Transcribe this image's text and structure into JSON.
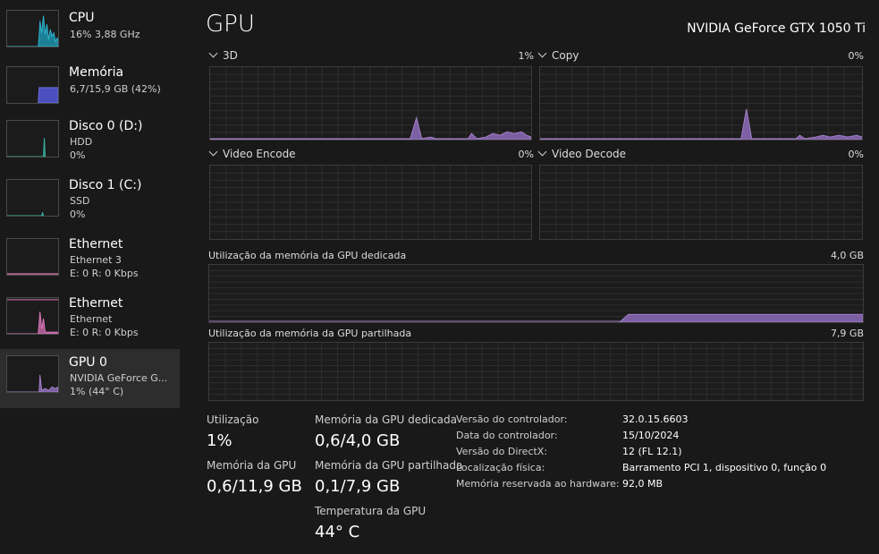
{
  "sidebar": {
    "items": [
      {
        "title": "CPU",
        "sub1": "16% 3,88 GHz",
        "sub2": "",
        "color": "#2fb4d1"
      },
      {
        "title": "Memória",
        "sub1": "6,7/15,9 GB (42%)",
        "sub2": "",
        "color": "#6d6fd8"
      },
      {
        "title": "Disco 0 (D:)",
        "sub1": "HDD",
        "sub2": "0%",
        "color": "#3db3a2"
      },
      {
        "title": "Disco 1 (C:)",
        "sub1": "SSD",
        "sub2": "0%",
        "color": "#3db3a2"
      },
      {
        "title": "Ethernet",
        "sub1": "Ethernet 3",
        "sub2": "E: 0 R: 0 Kbps",
        "color": "#d977b8"
      },
      {
        "title": "Ethernet",
        "sub1": "Ethernet",
        "sub2": "E: 0 R: 0 Kbps",
        "color": "#d977b8"
      },
      {
        "title": "GPU 0",
        "sub1": "NVIDIA GeForce G...",
        "sub2": "1% (44° C)",
        "color": "#a27fc6"
      }
    ]
  },
  "header": {
    "title": "GPU",
    "gpu_name": "NVIDIA GeForce GTX 1050 Ti"
  },
  "charts": {
    "engine_3d": {
      "label": "3D",
      "value": "1%"
    },
    "copy": {
      "label": "Copy",
      "value": "0%"
    },
    "video_encode": {
      "label": "Video Encode",
      "value": "0%"
    },
    "video_decode": {
      "label": "Video Decode",
      "value": "0%"
    },
    "dedicated": {
      "label": "Utilização da memória da GPU dedicada",
      "value": "4,0 GB"
    },
    "shared": {
      "label": "Utilização da memória da GPU partilhada",
      "value": "7,9 GB"
    }
  },
  "stats": {
    "utilization": {
      "label": "Utilização",
      "value": "1%"
    },
    "dedicated": {
      "label": "Memória da GPU dedicada",
      "value": "0,6/4,0 GB"
    },
    "gpu_memory": {
      "label": "Memória da GPU",
      "value": "0,6/11,9 GB"
    },
    "shared": {
      "label": "Memória da GPU partilhada",
      "value": "0,1/7,9 GB"
    },
    "temperature": {
      "label": "Temperatura da GPU",
      "value": "44° C"
    }
  },
  "info": [
    {
      "key": "Versão do controlador:",
      "value": "32.0.15.6603"
    },
    {
      "key": "Data do controlador:",
      "value": "15/10/2024"
    },
    {
      "key": "Versão do DirectX:",
      "value": "12 (FL 12.1)"
    },
    {
      "key": "Localização física:",
      "value": "Barramento PCI 1, dispositivo 0, função 0"
    },
    {
      "key": "Memória reservada ao hardware:",
      "value": "92,0 MB"
    }
  ],
  "colors": {
    "gpu_accent": "#a27fc6",
    "background": "#191919"
  }
}
